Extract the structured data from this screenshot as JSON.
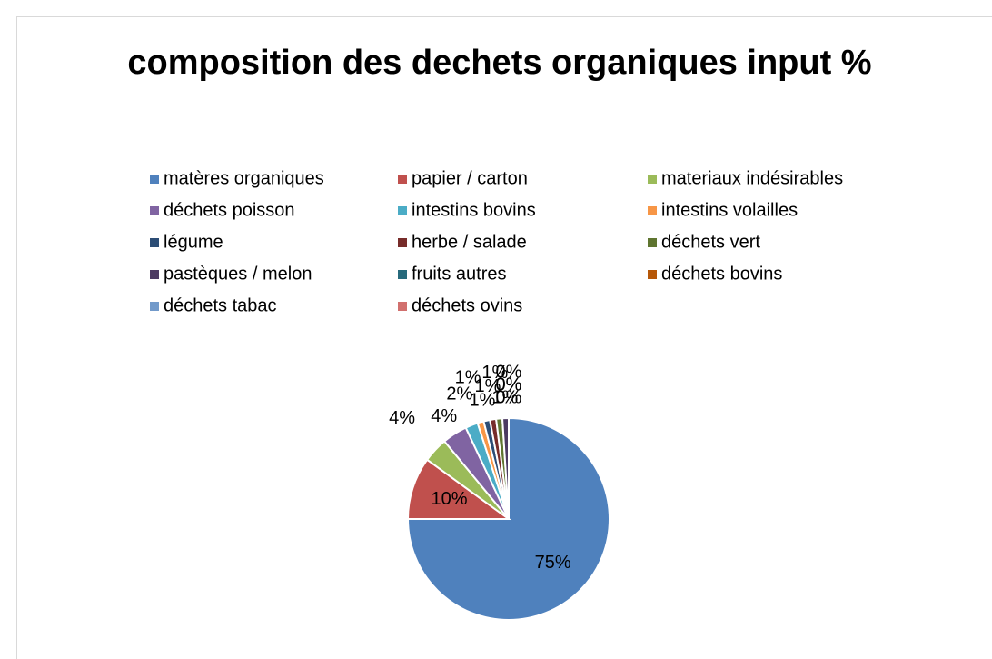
{
  "chart_data": {
    "type": "pie",
    "title": "composition des dechets organiques input %",
    "categories": [
      "matères organiques",
      "papier / carton",
      "materiaux indésirables",
      "déchets poisson",
      "intestins bovins",
      "intestins volailles",
      "légume",
      "herbe / salade",
      "déchets vert",
      "pastèques / melon",
      "fruits autres",
      "déchets bovins",
      "déchets tabac",
      "déchets ovins"
    ],
    "values": [
      75,
      10,
      4,
      4,
      2,
      1,
      1,
      1,
      1,
      1,
      0,
      0,
      0,
      0
    ],
    "value_labels": [
      "75%",
      "10%",
      "4%",
      "4%",
      "2%",
      "1%",
      "1%",
      "1%",
      "1%",
      "1%",
      "0%",
      "0%",
      "0%",
      "0%"
    ],
    "colors": [
      "#4f81bd",
      "#c0504d",
      "#9bbb59",
      "#8064a2",
      "#4bacc6",
      "#f79646",
      "#2c4d75",
      "#772c2a",
      "#5f7530",
      "#4d3b62",
      "#276a7c",
      "#b65708",
      "#729aca",
      "#d1706e"
    ],
    "legend": "top"
  }
}
